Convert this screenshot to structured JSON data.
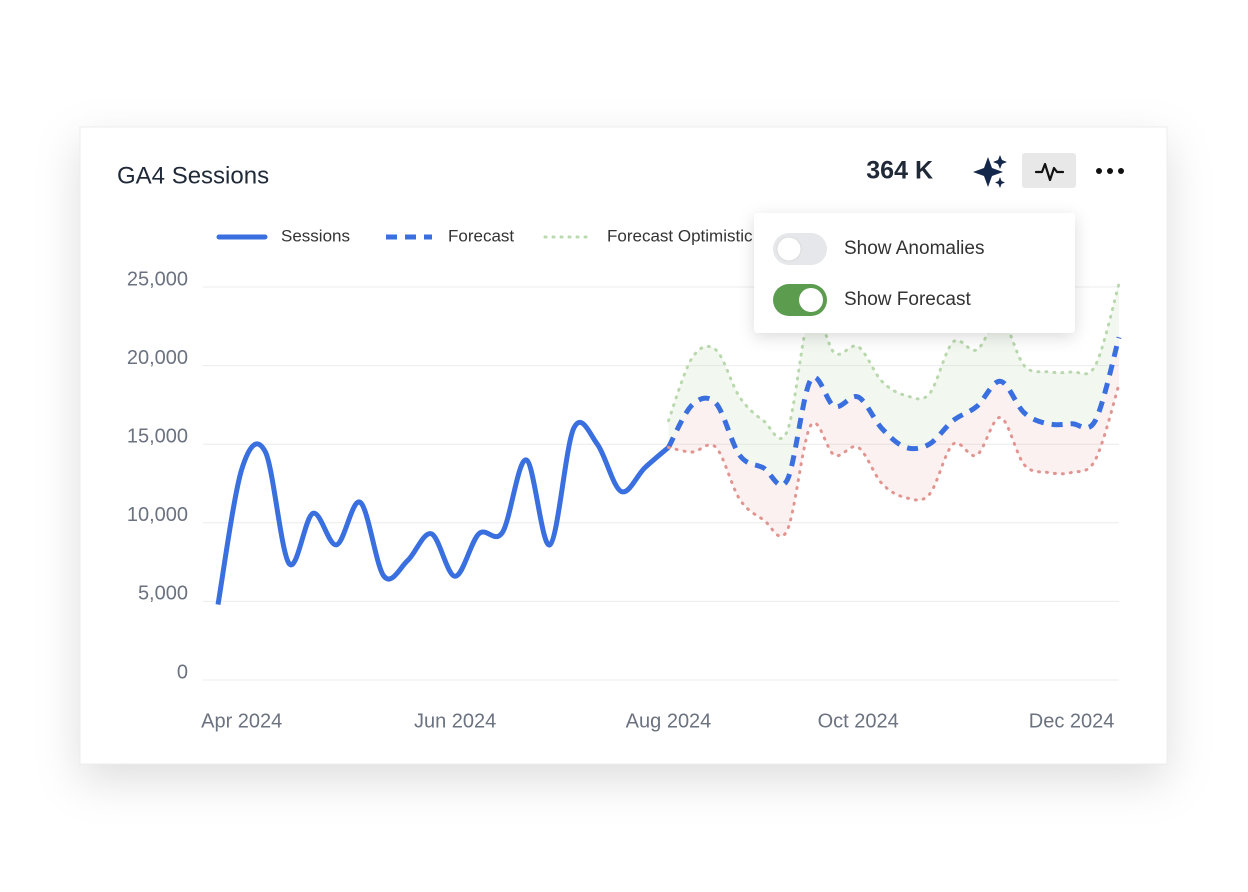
{
  "header": {
    "title": "GA4 Sessions",
    "total": "364 K"
  },
  "menu": {
    "items": [
      {
        "label": "Show Anomalies",
        "on": false
      },
      {
        "label": "Show Forecast",
        "on": true
      }
    ]
  },
  "chart_data": {
    "type": "line",
    "categories": [
      null,
      "Apr 2024",
      null,
      null,
      null,
      null,
      null,
      null,
      null,
      null,
      "Jun 2024",
      null,
      null,
      null,
      null,
      null,
      null,
      null,
      null,
      "Aug 2024",
      null,
      null,
      null,
      null,
      null,
      null,
      null,
      "Oct 2024",
      null,
      null,
      null,
      null,
      null,
      null,
      null,
      null,
      "Dec 2024",
      null,
      null
    ],
    "series": [
      {
        "name": "Sessions",
        "color": "#3a6fe0",
        "style": "solid",
        "values": [
          4800,
          13400,
          14500,
          7400,
          10600,
          8600,
          11300,
          6600,
          7600,
          9300,
          6600,
          9300,
          9400,
          14000,
          8600,
          16000,
          15000,
          12000,
          13500,
          14800,
          null,
          null,
          null,
          null,
          null,
          null,
          null,
          null,
          null,
          null,
          null,
          null,
          null,
          null,
          null,
          null,
          null,
          null,
          null
        ]
      },
      {
        "name": "Forecast",
        "color": "#3a6fe0",
        "style": "dashed",
        "values": [
          null,
          null,
          null,
          null,
          null,
          null,
          null,
          null,
          null,
          null,
          null,
          null,
          null,
          null,
          null,
          null,
          null,
          null,
          null,
          14800,
          17500,
          17600,
          14300,
          13500,
          12700,
          19100,
          17400,
          18000,
          16000,
          14800,
          15000,
          16500,
          17400,
          19000,
          17000,
          16300,
          16300,
          16500,
          21800
        ]
      },
      {
        "name": "Forecast Optimistic",
        "color": "#b9d8ad",
        "style": "dotted",
        "values": [
          null,
          null,
          null,
          null,
          null,
          null,
          null,
          null,
          null,
          null,
          null,
          null,
          null,
          null,
          null,
          null,
          null,
          null,
          null,
          16500,
          20500,
          21000,
          18000,
          16500,
          15800,
          23500,
          20800,
          21200,
          19000,
          18100,
          18200,
          21500,
          21000,
          23000,
          20000,
          19600,
          19600,
          20000,
          25200
        ]
      },
      {
        "color": "#e29590",
        "style": "dotted",
        "values": [
          null,
          null,
          null,
          null,
          null,
          null,
          null,
          null,
          null,
          null,
          null,
          null,
          null,
          null,
          null,
          null,
          null,
          null,
          null,
          14800,
          14500,
          14800,
          11500,
          10200,
          9500,
          16200,
          14300,
          14800,
          12500,
          11600,
          11800,
          15000,
          14300,
          16700,
          13700,
          13200,
          13200,
          14000,
          18800
        ]
      }
    ],
    "ylim": [
      0,
      25000
    ],
    "yticks": [
      0,
      {
        "value": 5000,
        "label": "5,000"
      },
      {
        "value": 10000,
        "label": "10,000"
      },
      {
        "value": 15000,
        "label": "15,000"
      },
      {
        "value": 20000,
        "label": "20,000"
      },
      {
        "value": 25000,
        "label": "25,000"
      }
    ],
    "grid": true
  }
}
